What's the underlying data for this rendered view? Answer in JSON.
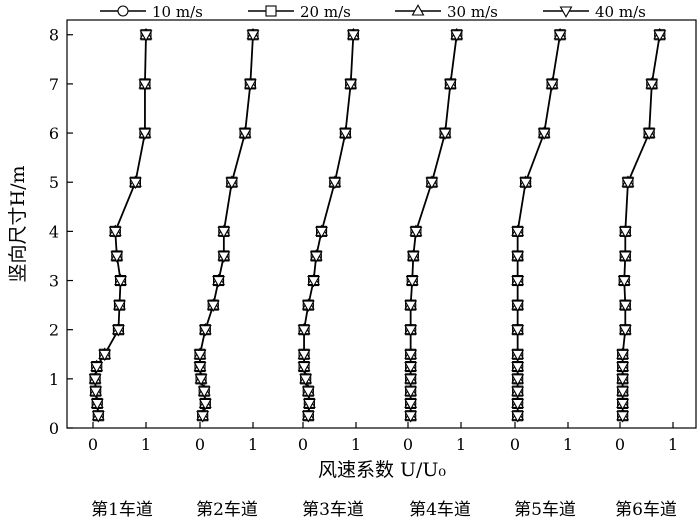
{
  "chart_data": {
    "type": "line",
    "ylabel": "竖向尺寸H/m",
    "xlabel": "风速系数 U/U₀",
    "ylim": [
      0,
      8.3
    ],
    "y_ticks": [
      0,
      1,
      2,
      3,
      4,
      5,
      6,
      7,
      8
    ],
    "x_ticks": [
      0,
      1
    ],
    "grid": false,
    "legend_position": "top",
    "legend": [
      "10 m/s",
      "20 m/s",
      "30 m/s",
      "40 m/s"
    ],
    "markers": [
      "circle",
      "square",
      "triangle-up",
      "triangle-down"
    ],
    "y": [
      0.25,
      0.5,
      0.75,
      1.0,
      1.25,
      1.5,
      2.0,
      2.5,
      3.0,
      3.5,
      4.0,
      5.0,
      6.0,
      7.0,
      8.0
    ],
    "lanes": [
      {
        "label": "第1车道",
        "x": [
          0.1,
          0.08,
          0.05,
          0.04,
          0.07,
          0.22,
          0.48,
          0.5,
          0.52,
          0.45,
          0.42,
          0.8,
          0.98,
          0.98,
          1.0
        ]
      },
      {
        "label": "第2车道",
        "x": [
          0.05,
          0.1,
          0.08,
          0.02,
          0.0,
          0.0,
          0.1,
          0.25,
          0.35,
          0.45,
          0.45,
          0.6,
          0.85,
          0.95,
          1.0
        ]
      },
      {
        "label": "第3车道",
        "x": [
          0.1,
          0.12,
          0.1,
          0.05,
          0.02,
          0.02,
          0.02,
          0.1,
          0.2,
          0.25,
          0.35,
          0.6,
          0.8,
          0.9,
          0.95
        ]
      },
      {
        "label": "第4车道",
        "x": [
          0.05,
          0.05,
          0.05,
          0.05,
          0.05,
          0.05,
          0.05,
          0.05,
          0.08,
          0.1,
          0.15,
          0.45,
          0.7,
          0.8,
          0.92
        ]
      },
      {
        "label": "第5车道",
        "x": [
          0.05,
          0.05,
          0.05,
          0.05,
          0.05,
          0.05,
          0.05,
          0.05,
          0.05,
          0.05,
          0.05,
          0.2,
          0.55,
          0.7,
          0.85
        ]
      },
      {
        "label": "第6车道",
        "x": [
          0.05,
          0.05,
          0.05,
          0.05,
          0.05,
          0.05,
          0.1,
          0.1,
          0.08,
          0.1,
          0.1,
          0.15,
          0.55,
          0.6,
          0.75
        ]
      }
    ]
  }
}
